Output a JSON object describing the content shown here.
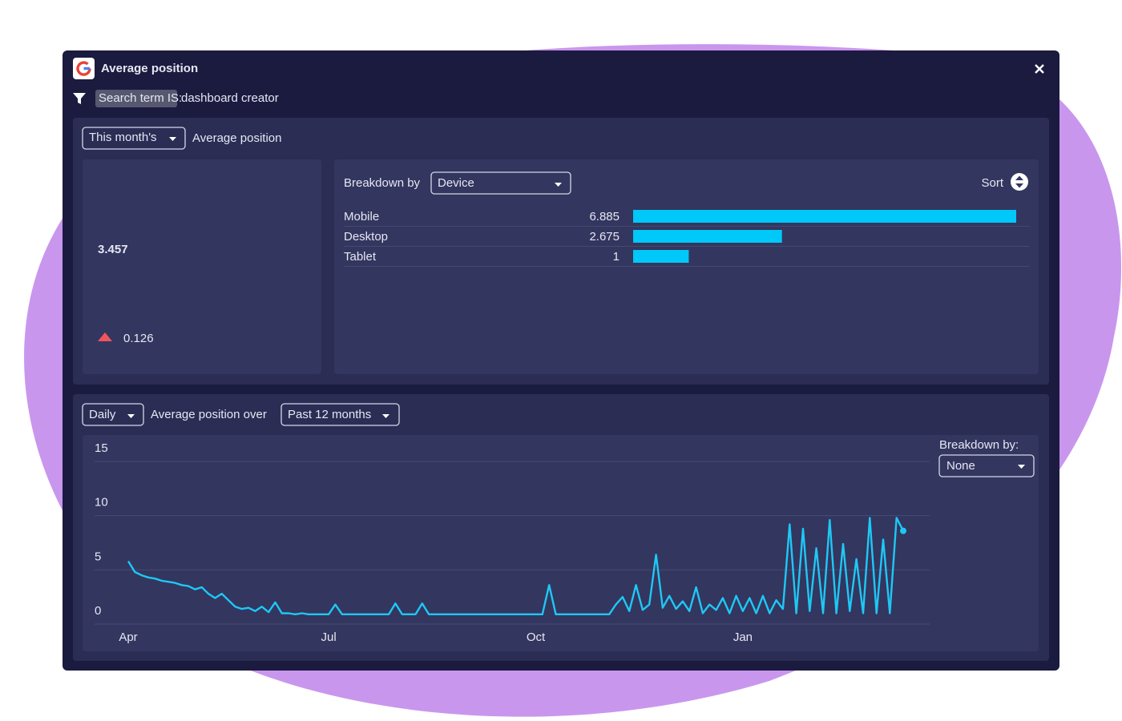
{
  "header": {
    "title": "Average position",
    "filter_label": "Search term IS:",
    "filter_value": "dashboard creator"
  },
  "kpi": {
    "period": "This month's",
    "label": "Average position",
    "value": "3.457",
    "change": "0.126"
  },
  "breakdown": {
    "label": "Breakdown by",
    "select": "Device",
    "sort": "Sort"
  },
  "trend": {
    "interval": "Daily",
    "label": "Average position over",
    "range": "Past 12 months",
    "breakdown_label": "Breakdown by:",
    "breakdown_select": "None"
  },
  "chart_data": [
    {
      "type": "bar",
      "categories": [
        "Mobile",
        "Desktop",
        "Tablet"
      ],
      "values": [
        6.885,
        2.675,
        1
      ],
      "color": "#00c8f8"
    },
    {
      "type": "line",
      "color": "#1ec8f5",
      "grid": true,
      "ylim": [
        0,
        15
      ],
      "yticks": [
        0,
        5,
        10,
        15
      ],
      "categories": [
        "Apr",
        null,
        null,
        null,
        null,
        null,
        null,
        null,
        null,
        null,
        null,
        null,
        null,
        null,
        null,
        null,
        null,
        null,
        null,
        null,
        null,
        null,
        null,
        null,
        null,
        null,
        null,
        null,
        null,
        null,
        "Jul",
        null,
        null,
        null,
        null,
        null,
        null,
        null,
        null,
        null,
        null,
        null,
        null,
        null,
        null,
        null,
        null,
        null,
        null,
        null,
        null,
        null,
        null,
        null,
        null,
        null,
        null,
        null,
        null,
        null,
        null,
        "Oct",
        null,
        null,
        null,
        null,
        null,
        null,
        null,
        null,
        null,
        null,
        null,
        null,
        null,
        null,
        null,
        null,
        null,
        null,
        null,
        null,
        null,
        null,
        null,
        null,
        null,
        null,
        null,
        null,
        null,
        null,
        "Jan",
        null,
        null,
        null,
        null,
        null,
        null,
        null,
        null,
        null,
        null,
        null,
        null,
        null,
        null,
        null,
        null,
        null,
        null,
        null,
        null,
        null,
        null,
        null,
        null
      ],
      "values": [
        5.8,
        4.8,
        4.5,
        4.3,
        4.2,
        4.0,
        3.9,
        3.8,
        3.6,
        3.5,
        3.2,
        3.4,
        2.8,
        2.4,
        2.8,
        2.2,
        1.6,
        1.4,
        1.5,
        1.2,
        1.6,
        1.1,
        2.0,
        1.0,
        1.0,
        0.9,
        1.0,
        0.9,
        0.9,
        0.9,
        0.9,
        1.8,
        0.9,
        0.9,
        0.9,
        0.9,
        0.9,
        0.9,
        0.9,
        0.9,
        1.9,
        0.9,
        0.9,
        0.9,
        1.9,
        0.9,
        0.9,
        0.9,
        0.9,
        0.9,
        0.9,
        0.9,
        0.9,
        0.9,
        0.9,
        0.9,
        0.9,
        0.9,
        0.9,
        0.9,
        0.9,
        0.9,
        0.9,
        3.6,
        0.9,
        0.9,
        0.9,
        0.9,
        0.9,
        0.9,
        0.9,
        0.9,
        0.9,
        1.8,
        2.5,
        1.2,
        3.6,
        1.3,
        1.8,
        6.4,
        1.5,
        2.6,
        1.4,
        2.1,
        1.2,
        3.4,
        1.0,
        1.8,
        1.3,
        2.4,
        1.0,
        2.6,
        1.2,
        2.4,
        1.0,
        2.6,
        1.0,
        2.2,
        1.4,
        9.2,
        1.0,
        8.8,
        1.2,
        7.0,
        1.0,
        9.6,
        1.0,
        7.4,
        1.2,
        6.0,
        1.0,
        9.8,
        1.0,
        7.8,
        1.0,
        9.8,
        8.6
      ]
    }
  ]
}
